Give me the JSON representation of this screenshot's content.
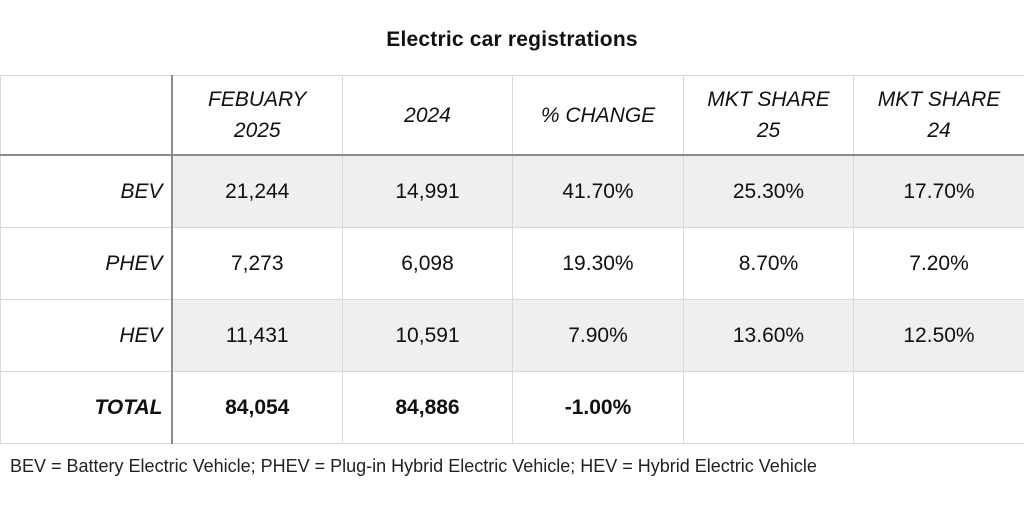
{
  "chart_data": {
    "type": "table",
    "title": "Electric car registrations",
    "columns": [
      "FEBUARY 2025",
      "2024",
      "% CHANGE",
      "MKT SHARE 25",
      "MKT SHARE 24"
    ],
    "header_lines": [
      [
        "FEBUARY",
        "2025"
      ],
      [
        "2024"
      ],
      [
        "% CHANGE"
      ],
      [
        "MKT SHARE",
        "25"
      ],
      [
        "MKT SHARE",
        "24"
      ]
    ],
    "rows": [
      {
        "label": "BEV",
        "cells": [
          "21,244",
          "14,991",
          "41.70%",
          "25.30%",
          "17.70%"
        ]
      },
      {
        "label": "PHEV",
        "cells": [
          "7,273",
          "6,098",
          "19.30%",
          "8.70%",
          "7.20%"
        ]
      },
      {
        "label": "HEV",
        "cells": [
          "11,431",
          "10,591",
          "7.90%",
          "13.60%",
          "12.50%"
        ]
      },
      {
        "label": "TOTAL",
        "cells": [
          "84,054",
          "84,886",
          "-1.00%",
          "",
          ""
        ]
      }
    ],
    "footnote": "BEV = Battery Electric Vehicle; PHEV = Plug-in Hybrid Electric Vehicle; HEV = Hybrid Electric Vehicle"
  }
}
